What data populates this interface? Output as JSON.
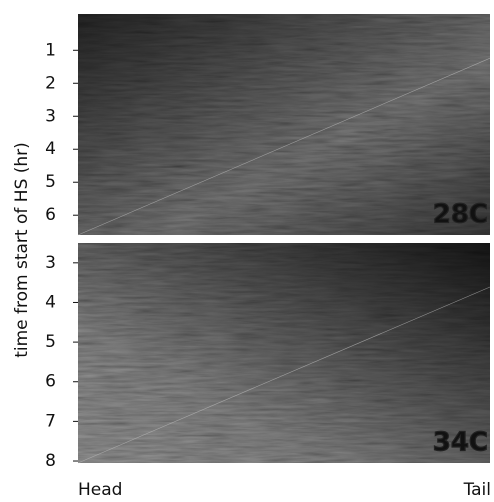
{
  "ylabel": "time from start of HS (hr)",
  "xlabels": [
    "Head",
    "Tail"
  ],
  "chart_data": [
    {
      "type": "image",
      "ylim": [
        -0.1,
        6.6
      ],
      "yticks": [
        1,
        2,
        3,
        4,
        5,
        6
      ],
      "label": "28C",
      "color": "#f2b233"
    },
    {
      "type": "image",
      "ylim": [
        2.5,
        8.05
      ],
      "yticks": [
        3,
        4,
        5,
        6,
        7,
        8
      ],
      "label": "34C",
      "color": "#e0305a"
    }
  ]
}
